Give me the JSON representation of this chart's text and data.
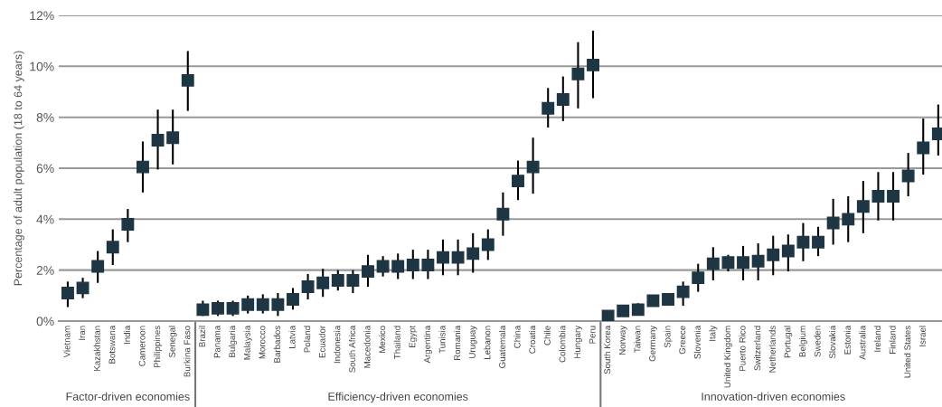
{
  "chart_data": {
    "type": "scatter",
    "ylabel": "Percentage of adult population (18 to 64 years)",
    "categories": [
      "Vietnam",
      "Iran",
      "Kazakhstan",
      "Botswana",
      "India",
      "Cameroon",
      "Philippines",
      "Senegal",
      "Burkina Faso",
      "Brazil",
      "Panama",
      "Bulgaria",
      "Malaysia",
      "Morocco",
      "Barbados",
      "Latvia",
      "Poland",
      "Ecuador",
      "Indonesia",
      "South Africa",
      "Macedonia",
      "Mexico",
      "Thailand",
      "Egypt",
      "Argentina",
      "Tunisia",
      "Romania",
      "Uruguay",
      "Lebanon",
      "Guatemala",
      "China",
      "Croatia",
      "Chile",
      "Colombia",
      "Hungary",
      "Peru",
      "South Korea",
      "Norway",
      "Taiwan",
      "Germany",
      "Spain",
      "Greece",
      "Slovenia",
      "Italy",
      "United Kingdom",
      "Puerto Rico",
      "Switzerland",
      "Netherlands",
      "Portugal",
      "Belgium",
      "Sweden",
      "Slovakia",
      "Estonia",
      "Australia",
      "Ireland",
      "Finland",
      "United States",
      "Israel",
      null
    ],
    "values": [
      1.1,
      1.3,
      2.15,
      2.9,
      3.8,
      6.05,
      7.1,
      7.2,
      9.45,
      0.45,
      0.5,
      0.5,
      0.65,
      0.65,
      0.65,
      0.85,
      1.35,
      1.5,
      1.6,
      1.6,
      1.95,
      2.15,
      2.15,
      2.2,
      2.2,
      2.5,
      2.5,
      2.65,
      3.0,
      4.2,
      5.5,
      6.05,
      8.35,
      8.7,
      9.7,
      10.05,
      0.2,
      0.4,
      0.45,
      0.8,
      0.85,
      1.15,
      1.7,
      2.25,
      2.3,
      2.3,
      2.35,
      2.6,
      2.75,
      3.1,
      3.1,
      3.85,
      4.0,
      4.5,
      4.9,
      4.9,
      5.7,
      6.8,
      7.35
    ],
    "errors": [
      [
        0.55,
        1.55
      ],
      [
        0.9,
        1.7
      ],
      [
        1.5,
        2.75
      ],
      [
        2.2,
        3.6
      ],
      [
        3.1,
        4.4
      ],
      [
        5.05,
        7.05
      ],
      [
        5.95,
        8.3
      ],
      [
        6.15,
        8.3
      ],
      [
        8.25,
        10.6
      ],
      [
        0.2,
        0.8
      ],
      [
        0.2,
        0.8
      ],
      [
        0.2,
        0.8
      ],
      [
        0.3,
        1.0
      ],
      [
        0.3,
        1.05
      ],
      [
        0.2,
        1.1
      ],
      [
        0.45,
        1.3
      ],
      [
        0.85,
        1.85
      ],
      [
        0.95,
        2.05
      ],
      [
        1.2,
        2.0
      ],
      [
        1.1,
        2.0
      ],
      [
        1.35,
        2.6
      ],
      [
        1.75,
        2.55
      ],
      [
        1.65,
        2.65
      ],
      [
        1.65,
        2.8
      ],
      [
        1.65,
        2.8
      ],
      [
        1.8,
        3.2
      ],
      [
        1.8,
        3.2
      ],
      [
        1.9,
        3.45
      ],
      [
        2.4,
        3.6
      ],
      [
        3.35,
        5.05
      ],
      [
        4.75,
        6.3
      ],
      [
        5.0,
        7.2
      ],
      [
        7.6,
        9.15
      ],
      [
        7.85,
        9.6
      ],
      [
        8.35,
        10.95
      ],
      [
        8.75,
        11.4
      ],
      [
        0.05,
        0.35
      ],
      [
        0.2,
        0.6
      ],
      [
        0.25,
        0.7
      ],
      [
        0.6,
        1.0
      ],
      null,
      [
        0.6,
        1.55
      ],
      [
        1.15,
        2.25
      ],
      [
        1.6,
        2.9
      ],
      [
        1.95,
        2.6
      ],
      [
        1.6,
        2.95
      ],
      [
        1.6,
        3.05
      ],
      [
        1.8,
        3.35
      ],
      [
        1.95,
        3.4
      ],
      [
        2.35,
        3.85
      ],
      [
        2.55,
        3.7
      ],
      [
        3.0,
        4.8
      ],
      [
        3.1,
        4.9
      ],
      [
        3.45,
        5.5
      ],
      [
        3.95,
        5.85
      ],
      [
        3.95,
        5.85
      ],
      [
        4.9,
        6.6
      ],
      [
        5.75,
        7.95
      ],
      [
        6.5,
        8.5
      ]
    ],
    "color": "#1e3644",
    "marker": "square",
    "grid": "y",
    "ylim": [
      0,
      12
    ],
    "yticks": [
      {
        "value": 0,
        "label": "0%"
      },
      {
        "value": 2,
        "label": "2%"
      },
      {
        "value": 4,
        "label": "4%"
      },
      {
        "value": 6,
        "label": "6%"
      },
      {
        "value": 8,
        "label": "8%"
      },
      {
        "value": 10,
        "label": "10%"
      },
      {
        "value": 12,
        "label": "12%"
      }
    ],
    "annotations": [
      "Factor-driven economies",
      "Efficiency-driven economies",
      "Innovation-driven economies"
    ]
  }
}
